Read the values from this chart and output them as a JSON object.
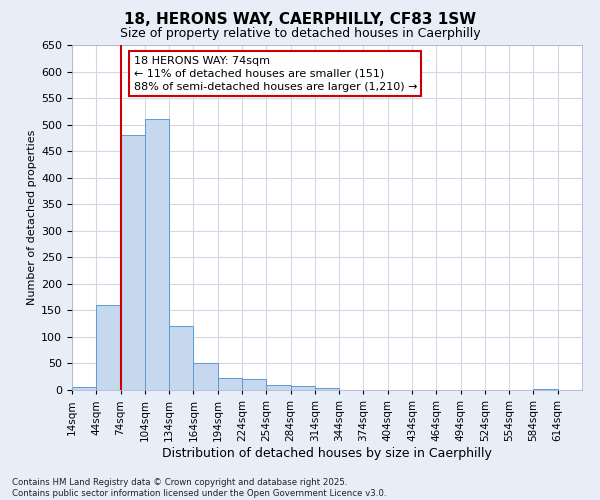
{
  "title_line1": "18, HERONS WAY, CAERPHILLY, CF83 1SW",
  "title_line2": "Size of property relative to detached houses in Caerphilly",
  "xlabel": "Distribution of detached houses by size in Caerphilly",
  "ylabel": "Number of detached properties",
  "footnote_line1": "Contains HM Land Registry data © Crown copyright and database right 2025.",
  "footnote_line2": "Contains public sector information licensed under the Open Government Licence v3.0.",
  "bin_edges": [
    14,
    44,
    74,
    104,
    134,
    164,
    194,
    224,
    254,
    284,
    314,
    344,
    374,
    404,
    434,
    464,
    494,
    524,
    554,
    584,
    614
  ],
  "bar_heights": [
    5,
    160,
    480,
    510,
    120,
    50,
    22,
    20,
    10,
    7,
    3,
    0,
    0,
    0,
    0,
    0,
    0,
    0,
    0,
    2
  ],
  "bar_color": "#c5d8ee",
  "bar_edgecolor": "#5b9bd5",
  "xlim_min": 14,
  "xlim_max": 644,
  "ylim_min": 0,
  "ylim_max": 650,
  "yticks": [
    0,
    50,
    100,
    150,
    200,
    250,
    300,
    350,
    400,
    450,
    500,
    550,
    600,
    650
  ],
  "xtick_positions": [
    14,
    44,
    74,
    104,
    134,
    164,
    194,
    224,
    254,
    284,
    314,
    344,
    374,
    404,
    434,
    464,
    494,
    524,
    554,
    584,
    614
  ],
  "xtick_labels": [
    "14sqm",
    "44sqm",
    "74sqm",
    "104sqm",
    "134sqm",
    "164sqm",
    "194sqm",
    "224sqm",
    "254sqm",
    "284sqm",
    "314sqm",
    "344sqm",
    "374sqm",
    "404sqm",
    "434sqm",
    "464sqm",
    "494sqm",
    "524sqm",
    "554sqm",
    "584sqm",
    "614sqm"
  ],
  "property_line_x": 74,
  "red_line_color": "#cc0000",
  "annotation_text_line1": "18 HERONS WAY: 74sqm",
  "annotation_text_line2": "← 11% of detached houses are smaller (151)",
  "annotation_text_line3": "88% of semi-detached houses are larger (1,210) →",
  "annotation_box_facecolor": "#ffffff",
  "annotation_box_edgecolor": "#cc0000",
  "plot_bg_color": "#ffffff",
  "fig_bg_color": "#e8eef8",
  "grid_color": "#d0d8e8",
  "title1_fontsize": 11,
  "title2_fontsize": 9,
  "ylabel_fontsize": 8,
  "xlabel_fontsize": 9,
  "ytick_fontsize": 8,
  "xtick_fontsize": 7.5,
  "annot_fontsize": 8
}
